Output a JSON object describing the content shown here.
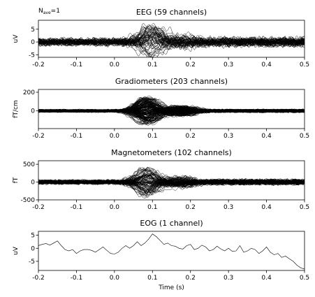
{
  "header": {
    "nave_base": "N",
    "nave_sub": "ave",
    "nave_value": "=1"
  },
  "chart_data": [
    {
      "type": "line",
      "title": "EEG (59 channels)",
      "ylabel": "uV",
      "xlim": [
        -0.2,
        0.5
      ],
      "ylim": [
        -6,
        8.5
      ],
      "xticks": [
        -0.2,
        -0.1,
        0.0,
        0.1,
        0.2,
        0.3,
        0.4,
        0.5
      ],
      "xtick_labels": [
        "-0.2",
        "-0.1",
        "0.0",
        "0.1",
        "0.2",
        "0.3",
        "0.4",
        "0.5"
      ],
      "yticks": [
        -5,
        0,
        5
      ],
      "ytick_labels": [
        "-5",
        "0",
        "5"
      ],
      "channel_count": 59,
      "amplitude": {
        "baseline": 1.2,
        "peak": 6.5,
        "peak_time": 0.1,
        "late": 1.6
      },
      "line_color": "#000000"
    },
    {
      "type": "line",
      "title": "Gradiometers (203 channels)",
      "ylabel": "fT/cm",
      "xlim": [
        -0.2,
        0.5
      ],
      "ylim": [
        -190,
        230
      ],
      "xticks": [
        -0.2,
        -0.1,
        0.0,
        0.1,
        0.2,
        0.3,
        0.4,
        0.5
      ],
      "xtick_labels": [
        "-0.2",
        "-0.1",
        "0.0",
        "0.1",
        "0.2",
        "0.3",
        "0.4",
        "0.5"
      ],
      "yticks": [
        0,
        200
      ],
      "ytick_labels": [
        "0",
        "200"
      ],
      "channel_count": 203,
      "amplitude": {
        "baseline": 12,
        "peak": 150,
        "peak_time": 0.085,
        "late": 14
      },
      "line_color": "#000000"
    },
    {
      "type": "line",
      "title": "Magnetometers (102 channels)",
      "ylabel": "fT",
      "xlim": [
        -0.2,
        0.5
      ],
      "ylim": [
        -500,
        600
      ],
      "xticks": [
        -0.2,
        -0.1,
        0.0,
        0.1,
        0.2,
        0.3,
        0.4,
        0.5
      ],
      "xtick_labels": [
        "-0.2",
        "-0.1",
        "0.0",
        "0.1",
        "0.2",
        "0.3",
        "0.4",
        "0.5"
      ],
      "yticks": [
        -500,
        0,
        500
      ],
      "ytick_labels": [
        "-500",
        "0",
        "500"
      ],
      "channel_count": 102,
      "amplitude": {
        "baseline": 50,
        "peak": 420,
        "peak_time": 0.085,
        "late": 70
      },
      "line_color": "#000000"
    },
    {
      "type": "line",
      "title": "EOG (1 channel)",
      "ylabel": "uV",
      "xlabel": "Time (s)",
      "xlim": [
        -0.2,
        0.5
      ],
      "ylim": [
        -8.5,
        6.5
      ],
      "xticks": [
        -0.2,
        -0.1,
        0.0,
        0.1,
        0.2,
        0.3,
        0.4,
        0.5
      ],
      "xtick_labels": [
        "-0.2",
        "-0.1",
        "0.0",
        "0.1",
        "0.2",
        "0.3",
        "0.4",
        "0.5"
      ],
      "yticks": [
        -5,
        0,
        5
      ],
      "ytick_labels": [
        "-5",
        "0",
        "5"
      ],
      "series": [
        {
          "x": [
            -0.2,
            -0.19,
            -0.18,
            -0.17,
            -0.16,
            -0.15,
            -0.14,
            -0.13,
            -0.12,
            -0.11,
            -0.1,
            -0.09,
            -0.08,
            -0.07,
            -0.06,
            -0.05,
            -0.04,
            -0.03,
            -0.02,
            -0.01,
            0.0,
            0.01,
            0.02,
            0.03,
            0.04,
            0.05,
            0.06,
            0.07,
            0.08,
            0.09,
            0.1,
            0.11,
            0.12,
            0.13,
            0.14,
            0.15,
            0.16,
            0.17,
            0.18,
            0.19,
            0.2,
            0.21,
            0.22,
            0.23,
            0.24,
            0.25,
            0.26,
            0.27,
            0.28,
            0.29,
            0.3,
            0.31,
            0.32,
            0.33,
            0.34,
            0.35,
            0.36,
            0.37,
            0.38,
            0.39,
            0.4,
            0.41,
            0.42,
            0.43,
            0.44,
            0.45,
            0.46,
            0.47,
            0.48,
            0.49,
            0.5
          ],
          "y": [
            1.0,
            1.5,
            1.8,
            1.2,
            2.0,
            2.8,
            1.0,
            -0.5,
            -1.0,
            -0.5,
            -2.0,
            -1.0,
            -0.5,
            -0.5,
            -0.8,
            -1.5,
            -0.5,
            0.5,
            -0.8,
            -2.0,
            -2.2,
            -1.5,
            0.0,
            1.0,
            0.0,
            1.0,
            2.5,
            1.0,
            2.0,
            3.5,
            5.5,
            4.5,
            3.0,
            1.5,
            2.0,
            1.0,
            0.8,
            0.0,
            -0.3,
            1.0,
            1.5,
            -0.5,
            0.0,
            1.2,
            0.5,
            -1.0,
            -0.5,
            0.8,
            -0.3,
            -1.0,
            0.0,
            -1.2,
            -1.0,
            1.0,
            -1.5,
            -1.0,
            0.0,
            -0.5,
            -2.0,
            -1.0,
            0.5,
            -1.5,
            -2.5,
            -2.0,
            -3.5,
            -3.0,
            -4.0,
            -5.0,
            -6.5,
            -7.5,
            -8.0
          ]
        }
      ],
      "line_color": "#000000"
    }
  ]
}
